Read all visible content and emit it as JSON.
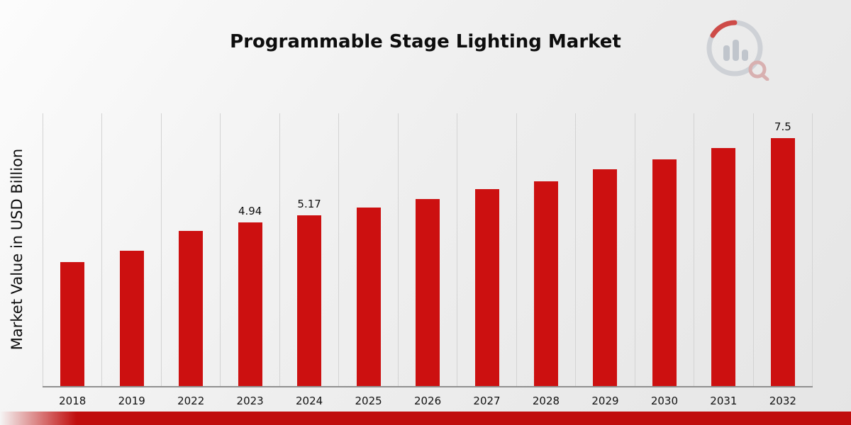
{
  "chart_data": {
    "type": "bar",
    "title": "Programmable Stage Lighting Market",
    "xlabel": "",
    "ylabel": "Market Value in USD Billion",
    "ylim": [
      0,
      8.25
    ],
    "grid": "vertical",
    "legend": "none",
    "bar_color": "#cc1010",
    "categories": [
      "2018",
      "2019",
      "2022",
      "2023",
      "2024",
      "2025",
      "2026",
      "2027",
      "2028",
      "2029",
      "2030",
      "2031",
      "2032"
    ],
    "values": [
      3.75,
      4.1,
      4.7,
      4.94,
      5.17,
      5.4,
      5.65,
      5.95,
      6.2,
      6.55,
      6.85,
      7.2,
      7.5
    ],
    "data_labels": [
      "",
      "",
      "",
      "4.94",
      "5.17",
      "",
      "",
      "",
      "",
      "",
      "",
      "",
      "7.5"
    ]
  },
  "branding": {
    "logo_icon": "market-research-chart-logo",
    "accent_color": "#c00d0d"
  }
}
